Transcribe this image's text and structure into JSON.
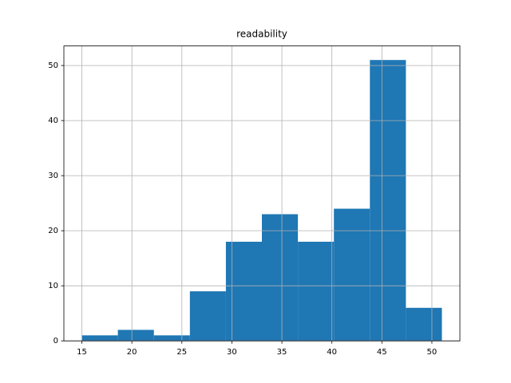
{
  "chart_data": {
    "type": "histogram",
    "title": "readability",
    "bins": [
      15,
      18.6,
      22.2,
      25.8,
      29.4,
      33,
      36.6,
      40.2,
      43.8,
      47.4,
      51
    ],
    "values": [
      1,
      2,
      1,
      9,
      18,
      23,
      18,
      24,
      51,
      6
    ],
    "color": "#1f77b4",
    "xlim": [
      13.2,
      52.8
    ],
    "xticks": [
      15,
      20,
      25,
      30,
      35,
      40,
      45,
      50
    ],
    "ylim": [
      0,
      53.55
    ],
    "yticks": [
      0,
      10,
      20,
      30,
      40,
      50
    ],
    "grid": true
  }
}
